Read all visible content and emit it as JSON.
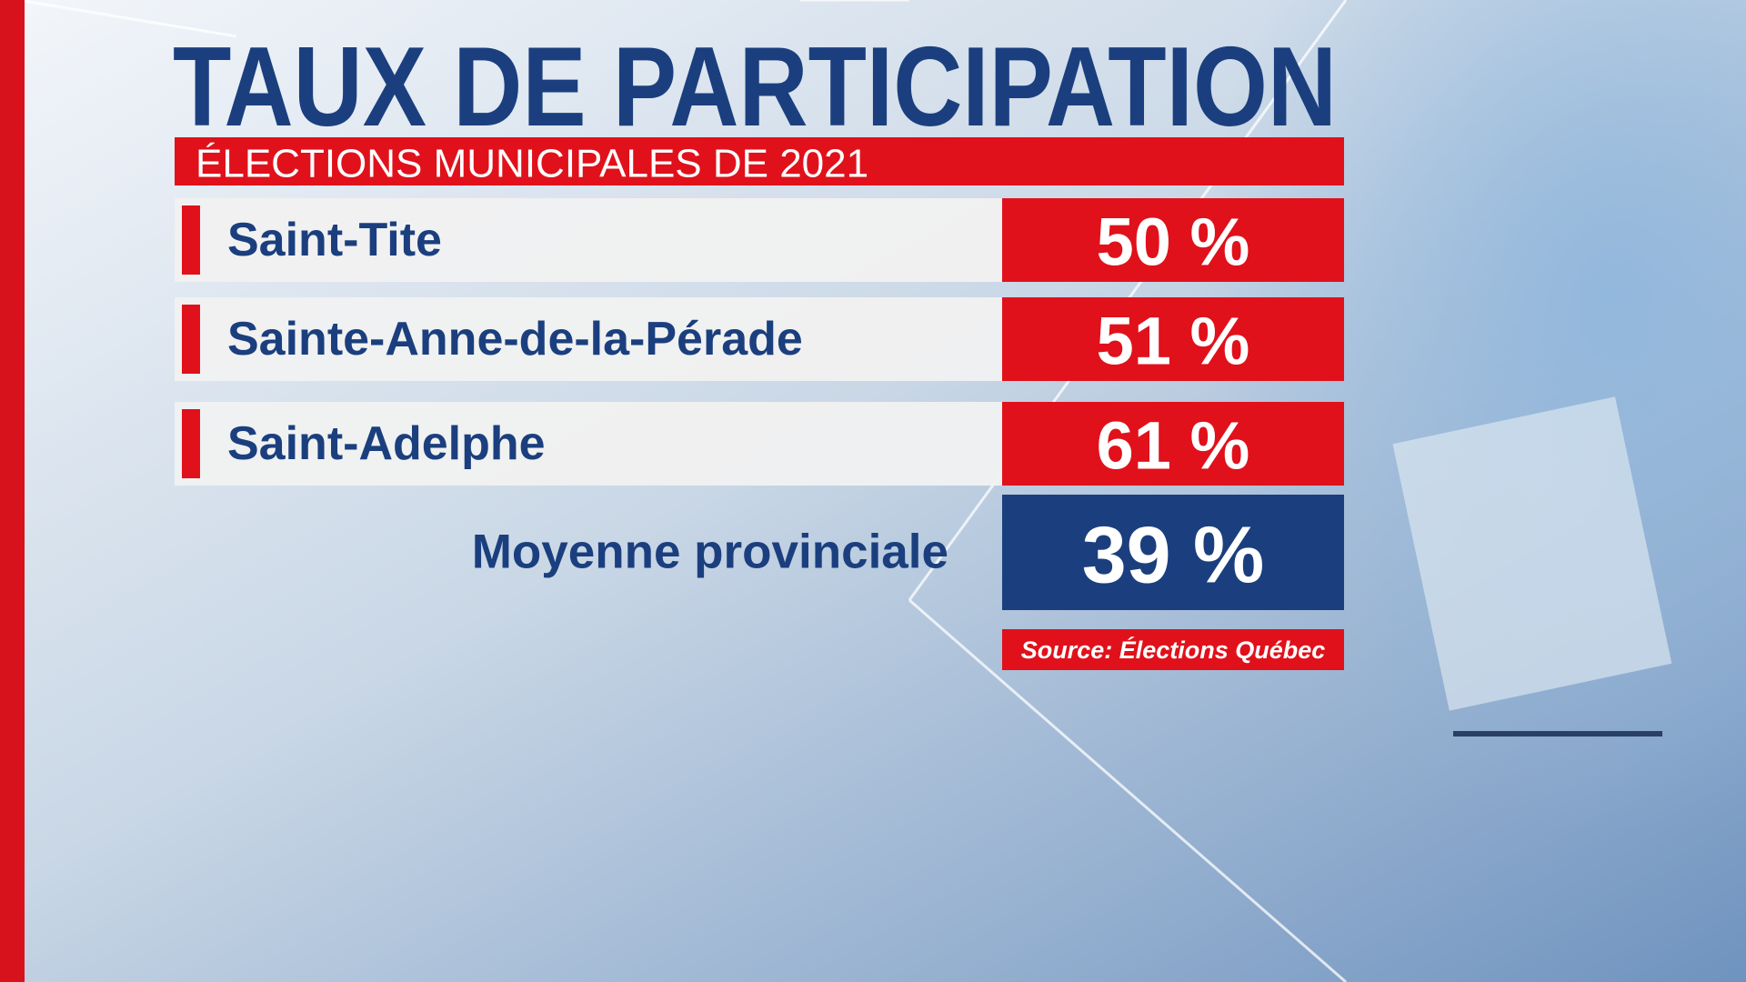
{
  "header": {
    "title": "TAUX DE PARTICIPATION",
    "subtitle": "ÉLECTIONS MUNICIPALES DE 2021"
  },
  "table": {
    "rows": [
      [
        "Saint-Tite",
        "50 %"
      ],
      [
        "Sainte-Anne-de-la-Pérade",
        "51 %"
      ],
      [
        "Saint-Adelphe",
        "61 %"
      ]
    ],
    "average": [
      "Moyenne provinciale",
      "39 %"
    ]
  },
  "footer": {
    "source": "Source: Élections Québec"
  }
}
